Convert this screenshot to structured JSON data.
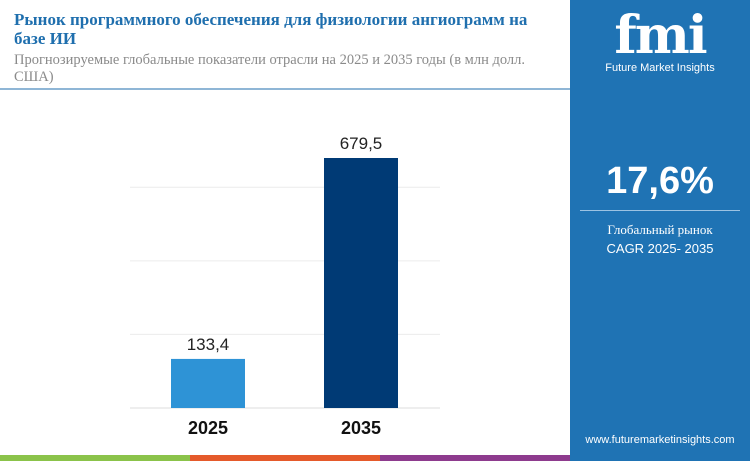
{
  "header": {
    "title": "Рынок программного обеспечения для физиологии ангиограмм на базе ИИ",
    "subtitle": "Прогнозируемые глобальные показатели отрасли на 2025 и 2035 годы (в млн долл. США)"
  },
  "sidebar": {
    "logo_text": "fmi",
    "logo_caption": "Future Market Insights",
    "cagr_value": "17,6%",
    "cagr_label_1": "Глобальный рынок",
    "cagr_label_2": "CAGR 2025- 2035",
    "url": "www.futuremarketinsights.com",
    "background": "#1f73b4"
  },
  "chart_data": {
    "type": "bar",
    "categories": [
      "2025",
      "2035"
    ],
    "values": [
      133.4,
      679.5
    ],
    "data_labels": [
      "133,4",
      "679,5"
    ],
    "colors": [
      "#2e93d6",
      "#003a75"
    ],
    "ylim": [
      0,
      800
    ],
    "grid": true,
    "title": "",
    "xlabel": "",
    "ylabel": ""
  },
  "footer_colors": [
    "#8bc34a",
    "#e55a2b",
    "#8e3b8e"
  ]
}
